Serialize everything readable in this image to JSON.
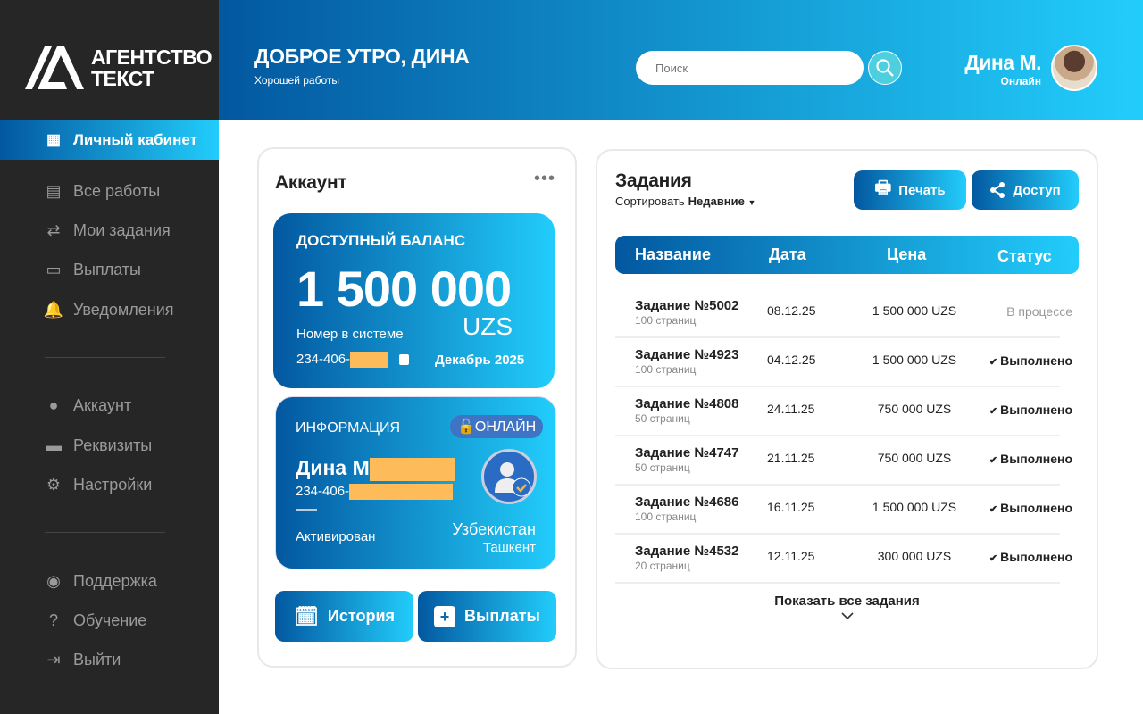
{
  "brand": {
    "line1": "АГЕНТСТВО",
    "line2": "ТЕКСТ"
  },
  "sidebar": {
    "items": [
      {
        "label": "Личный кабинет",
        "icon": "grid-icon",
        "active": true
      },
      {
        "label": "Все работы",
        "icon": "receipt-icon"
      },
      {
        "label": "Мои задания",
        "icon": "transfer-icon"
      },
      {
        "label": "Выплаты",
        "icon": "wallet-icon"
      },
      {
        "label": "Уведомления",
        "icon": "bell-icon"
      },
      {
        "label": "Аккаунт",
        "icon": "user-icon"
      },
      {
        "label": "Реквизиты",
        "icon": "card-icon"
      },
      {
        "label": "Настройки",
        "icon": "gear-icon"
      },
      {
        "label": "Поддержка",
        "icon": "headset-icon"
      },
      {
        "label": "Обучение",
        "icon": "help-icon"
      },
      {
        "label": "Выйти",
        "icon": "logout-icon"
      }
    ]
  },
  "header": {
    "greeting": "ДОБРОЕ УТРО, ДИНА",
    "subtitle": "Хорошей работы",
    "search_placeholder": "Поиск",
    "user_name": "Дина М.",
    "user_status": "Онлайн"
  },
  "account": {
    "title": "Аккаунт",
    "balance": {
      "label": "ДОСТУПНЫЙ БАЛАНС",
      "value": "1 500 000",
      "currency": "UZS",
      "number_label": "Номер в системе",
      "number": "234-406-",
      "period": "Декабрь 2025"
    },
    "info": {
      "label": "ИНФОРМАЦИЯ",
      "badge": "ОНЛАЙН",
      "name": "Дина М",
      "id": "234-406-",
      "status": "Активирован",
      "country": "Узбекистан",
      "city": "Ташкент"
    },
    "history_label": "История",
    "payouts_label": "Выплаты"
  },
  "tasks": {
    "title": "Задания",
    "sort_label": "Сортировать",
    "sort_value": "Недавние",
    "print_label": "Печать",
    "share_label": "Доступ",
    "columns": [
      "Название",
      "Дата",
      "Цена",
      "Статус"
    ],
    "rows": [
      {
        "title": "Задание №5002",
        "pages": "100 страниц",
        "date": "08.12.25",
        "price": "1 500 000 UZS",
        "status": "В процессе",
        "done": false
      },
      {
        "title": "Задание №4923",
        "pages": "100 страниц",
        "date": "04.12.25",
        "price": "1 500 000 UZS",
        "status": "Выполнено",
        "done": true
      },
      {
        "title": "Задание №4808",
        "pages": "50 страниц",
        "date": "24.11.25",
        "price": "750 000 UZS",
        "status": "Выполнено",
        "done": true
      },
      {
        "title": "Задание №4747",
        "pages": "50 страниц",
        "date": "21.11.25",
        "price": "750 000 UZS",
        "status": "Выполнено",
        "done": true
      },
      {
        "title": "Задание №4686",
        "pages": "100 страниц",
        "date": "16.11.25",
        "price": "1 500 000 UZS",
        "status": "Выполнено",
        "done": true
      },
      {
        "title": "Задание №4532",
        "pages": "20 страниц",
        "date": "12.11.25",
        "price": "300 000 UZS",
        "status": "Выполнено",
        "done": true
      }
    ],
    "show_all": "Показать все задания"
  },
  "colors": {
    "accent_start": "#0358a0",
    "accent_end": "#22cdfb",
    "sidebar": "#262626",
    "redaction": "#fdbb5a"
  }
}
